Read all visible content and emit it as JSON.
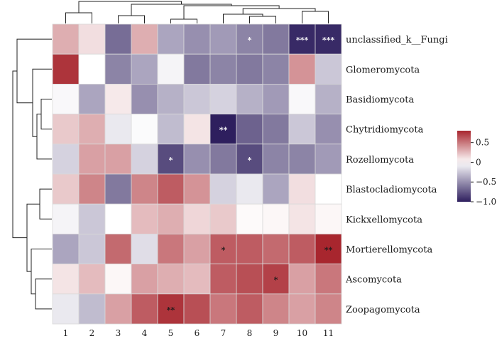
{
  "chart_data": {
    "type": "heatmap",
    "title": "",
    "columns": [
      "1",
      "2",
      "3",
      "4",
      "5",
      "6",
      "7",
      "8",
      "9",
      "10",
      "11"
    ],
    "rows": [
      "unclassified_k__Fungi",
      "Glomeromycota",
      "Basidiomycota",
      "Chytridiomycota",
      "Rozellomycota",
      "Blastocladiomycota",
      "Kickxellomycota",
      "Mortierellomycota",
      "Ascomycota",
      "Zoopagomycota"
    ],
    "values": [
      [
        0.3,
        0.12,
        -0.65,
        0.3,
        -0.4,
        -0.5,
        -0.45,
        -0.55,
        -0.6,
        -0.95,
        -0.95
      ],
      [
        0.75,
        0.0,
        -0.55,
        -0.4,
        -0.05,
        -0.6,
        -0.55,
        -0.6,
        -0.55,
        0.4,
        -0.25
      ],
      [
        -0.03,
        -0.4,
        0.08,
        -0.5,
        -0.35,
        -0.25,
        -0.2,
        -0.35,
        -0.45,
        -0.03,
        -0.35
      ],
      [
        0.2,
        0.3,
        -0.1,
        -0.02,
        -0.3,
        0.1,
        -1.0,
        -0.7,
        -0.6,
        -0.25,
        -0.5
      ],
      [
        -0.2,
        0.35,
        0.35,
        -0.2,
        -0.8,
        -0.5,
        -0.6,
        -0.8,
        -0.55,
        -0.55,
        -0.45
      ],
      [
        0.2,
        0.45,
        -0.6,
        0.45,
        0.6,
        0.4,
        -0.2,
        -0.1,
        -0.4,
        0.12,
        0.0
      ],
      [
        -0.05,
        -0.25,
        0.0,
        0.25,
        0.3,
        0.15,
        0.2,
        0.02,
        0.03,
        0.1,
        0.03
      ],
      [
        -0.4,
        -0.25,
        0.55,
        -0.15,
        0.5,
        0.35,
        0.6,
        0.6,
        0.55,
        0.6,
        0.8
      ],
      [
        0.1,
        0.25,
        0.03,
        0.35,
        0.3,
        0.25,
        0.6,
        0.65,
        0.7,
        0.35,
        0.5
      ],
      [
        -0.1,
        -0.3,
        0.35,
        0.6,
        0.75,
        0.65,
        0.5,
        0.6,
        0.45,
        0.35,
        0.45
      ]
    ],
    "significance": [
      [
        "",
        "",
        "",
        "",
        "",
        "",
        "",
        "*",
        "",
        "***",
        "***"
      ],
      [
        "",
        "",
        "",
        "",
        "",
        "",
        "",
        "",
        "",
        "",
        ""
      ],
      [
        "",
        "",
        "",
        "",
        "",
        "",
        "",
        "",
        "",
        "",
        ""
      ],
      [
        "",
        "",
        "",
        "",
        "",
        "",
        "**",
        "",
        "",
        "",
        ""
      ],
      [
        "",
        "",
        "",
        "",
        "*",
        "",
        "",
        "*",
        "",
        "",
        ""
      ],
      [
        "",
        "",
        "",
        "",
        "",
        "",
        "",
        "",
        "",
        "",
        ""
      ],
      [
        "",
        "",
        "",
        "",
        "",
        "",
        "",
        "",
        "",
        "",
        ""
      ],
      [
        "",
        "",
        "",
        "",
        "",
        "",
        "*",
        "",
        "",
        "",
        "**"
      ],
      [
        "",
        "",
        "",
        "",
        "",
        "",
        "",
        "",
        "*",
        "",
        ""
      ],
      [
        "",
        "",
        "",
        "",
        "**",
        "",
        "",
        "",
        "",
        "",
        ""
      ]
    ],
    "colorbar": {
      "min": -1.0,
      "max": 0.8,
      "ticks": [
        0.5,
        0,
        -0.5,
        -1.0
      ],
      "tick_labels": [
        "0.5",
        "0",
        "−0.5",
        "−1.0"
      ]
    },
    "colors": {
      "low": "#2e1f5e",
      "mid": "#ffffff",
      "high": "#a8262e"
    },
    "row_dendrogram": true,
    "col_dendrogram": true
  }
}
